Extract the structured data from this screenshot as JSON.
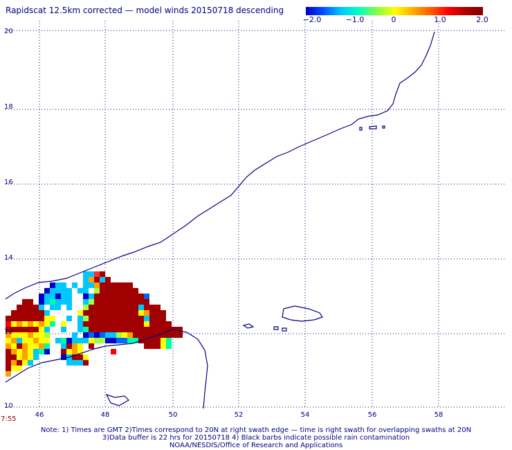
{
  "title": "Rapidscat 12.5km corrected — model winds 20150718 descending",
  "colorbar": {
    "ticks": [
      "−2.0",
      "−1.0",
      "0",
      "1.0",
      "2.0"
    ],
    "min": -2.0,
    "max": 2.0,
    "colors": [
      "#0000c8",
      "#0050ff",
      "#00c8ff",
      "#00ffc0",
      "#80ff40",
      "#ffff00",
      "#ffb000",
      "#ff6000",
      "#ff0000",
      "#b00000",
      "#800000"
    ]
  },
  "axes": {
    "lat_ticks": [
      "20",
      "18",
      "16",
      "14",
      "12",
      "10"
    ],
    "lon_ticks": [
      "46",
      "48",
      "50",
      "52",
      "54",
      "56",
      "58"
    ]
  },
  "time_label": "7:55",
  "notes": {
    "line1": "Note: 1) Times are GMT 2)Times correspond to 20N at right swath edge — time is right swath for overlapping swaths at 20N",
    "line2": "3)Data buffer is 22 hrs for 20150718 4) Black barbs indicate possible rain contamination",
    "line3": "NOAA/NESDIS/Office of Research and Applications"
  }
}
